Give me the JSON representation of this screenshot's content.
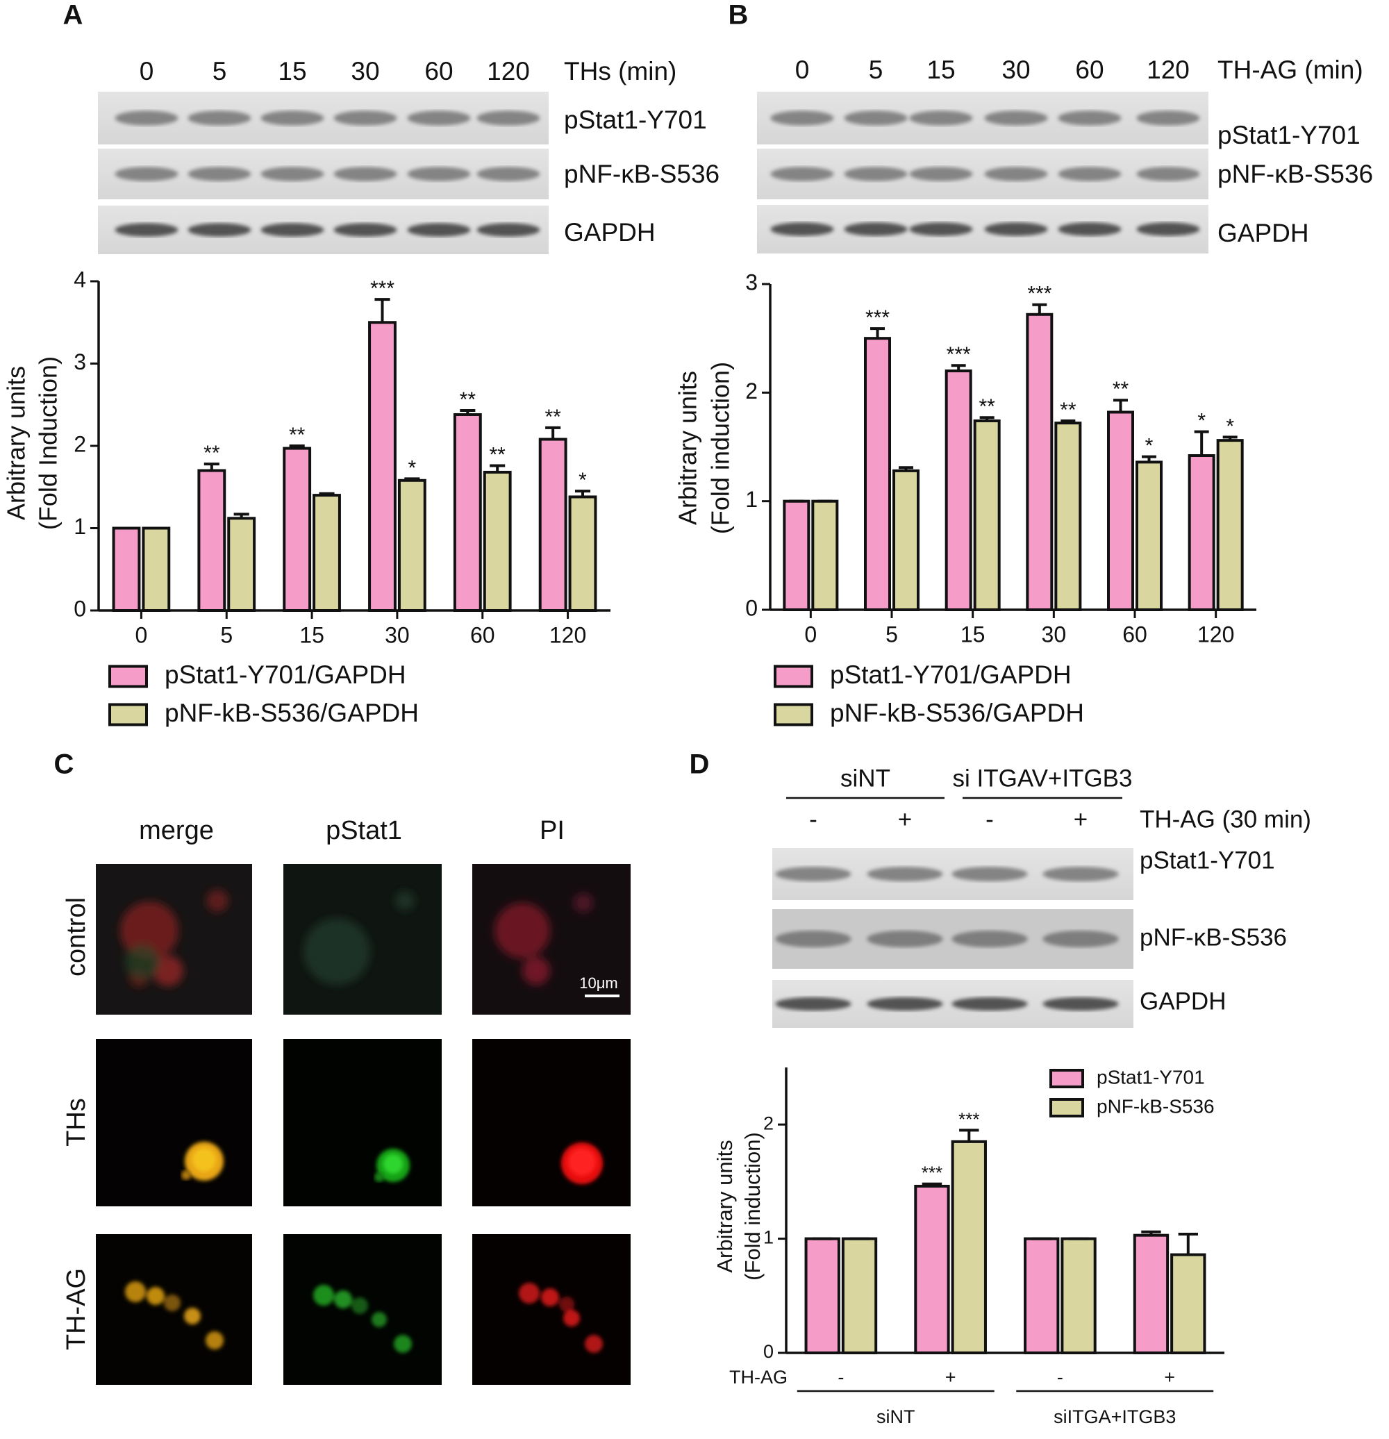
{
  "panel_labels": [
    "A",
    "B",
    "C",
    "D"
  ],
  "blot_a": {
    "lanes": [
      "0",
      "5",
      "15",
      "30",
      "60",
      "120"
    ],
    "condition": "THs (min)",
    "rows": [
      "pStat1-Y701",
      "pNF-κB-S536",
      "GAPDH"
    ]
  },
  "blot_b": {
    "lanes": [
      "0",
      "5",
      "15",
      "30",
      "60",
      "120"
    ],
    "condition": "TH-AG (min)",
    "rows": [
      "pStat1-Y701",
      "pNF-κB-S536",
      "GAPDH"
    ]
  },
  "panel_c": {
    "columns": [
      "merge",
      "pStat1",
      "PI"
    ],
    "rows": [
      "control",
      "THs",
      "TH-AG"
    ],
    "scale_bar": "10μm"
  },
  "blot_d": {
    "groups": [
      "siNT",
      "si ITGAV+ITGB3"
    ],
    "lanes": [
      "-",
      "+",
      "-",
      "+"
    ],
    "condition": "TH-AG (30 min)",
    "rows": [
      "pStat1-Y701",
      "pNF-κB-S536",
      "GAPDH"
    ]
  },
  "chart_data": [
    {
      "type": "bar",
      "ylabel": [
        "Arbitrary units",
        "(Fold Induction)"
      ],
      "categories": [
        "0",
        "5",
        "15",
        "30",
        "60",
        "120"
      ],
      "series": [
        {
          "name": "pStat1-Y701/GAPDH",
          "color": "#f59cc9",
          "values": [
            1,
            1.7,
            1.97,
            3.5,
            2.38,
            2.08
          ],
          "errors": [
            0,
            0.08,
            0.03,
            0.28,
            0.05,
            0.14
          ],
          "annotations": [
            null,
            "**",
            "**",
            "***",
            "**",
            "**"
          ]
        },
        {
          "name": "pNF-kB-S536/GAPDH",
          "color": "#d9d79f",
          "values": [
            1,
            1.12,
            1.4,
            1.58,
            1.68,
            1.38
          ],
          "errors": [
            0,
            0.05,
            0.02,
            0.02,
            0.08,
            0.07
          ],
          "annotations": [
            null,
            null,
            null,
            "*",
            "**",
            "*"
          ]
        }
      ],
      "ylim": [
        0,
        4
      ],
      "yticks": [
        0,
        1,
        2,
        3,
        4
      ],
      "legend": "bottom"
    },
    {
      "type": "bar",
      "ylabel": [
        "Arbitrary units",
        "(Fold induction)"
      ],
      "categories": [
        "0",
        "5",
        "15",
        "30",
        "60",
        "120"
      ],
      "series": [
        {
          "name": "pStat1-Y701/GAPDH",
          "color": "#f59cc9",
          "values": [
            1,
            2.5,
            2.2,
            2.72,
            1.82,
            1.42
          ],
          "errors": [
            0,
            0.09,
            0.05,
            0.09,
            0.11,
            0.22
          ],
          "annotations": [
            null,
            "***",
            "***",
            "***",
            "**",
            "*"
          ]
        },
        {
          "name": "pNF-kB-S536/GAPDH",
          "color": "#d9d79f",
          "values": [
            1,
            1.28,
            1.74,
            1.72,
            1.36,
            1.56
          ],
          "errors": [
            0,
            0.03,
            0.03,
            0.02,
            0.05,
            0.03
          ],
          "annotations": [
            null,
            null,
            "**",
            "**",
            "*",
            "*"
          ]
        }
      ],
      "ylim": [
        0,
        3
      ],
      "yticks": [
        0,
        1,
        2,
        3
      ],
      "legend": "bottom"
    },
    {
      "type": "bar",
      "ylabel": [
        "Arbitrary units",
        "(Fold induction)"
      ],
      "x_row_label": "TH-AG",
      "groups": [
        "siNT",
        "siITGA+ITGB3"
      ],
      "categories": [
        "-",
        "+",
        "-",
        "+"
      ],
      "series": [
        {
          "name": "pStat1-Y701",
          "color": "#f59cc9",
          "values": [
            1,
            1.46,
            1,
            1.03
          ],
          "errors": [
            0,
            0.02,
            0,
            0.03
          ],
          "annotations": [
            null,
            "***",
            null,
            null
          ]
        },
        {
          "name": "pNF-kB-S536",
          "color": "#d9d79f",
          "values": [
            1,
            1.85,
            1,
            0.86
          ],
          "errors": [
            0,
            0.1,
            0,
            0.18
          ],
          "annotations": [
            null,
            "***",
            null,
            null
          ]
        }
      ],
      "ylim": [
        0,
        2.5
      ],
      "yticks": [
        0,
        1,
        2
      ],
      "legend": "upper right"
    }
  ]
}
